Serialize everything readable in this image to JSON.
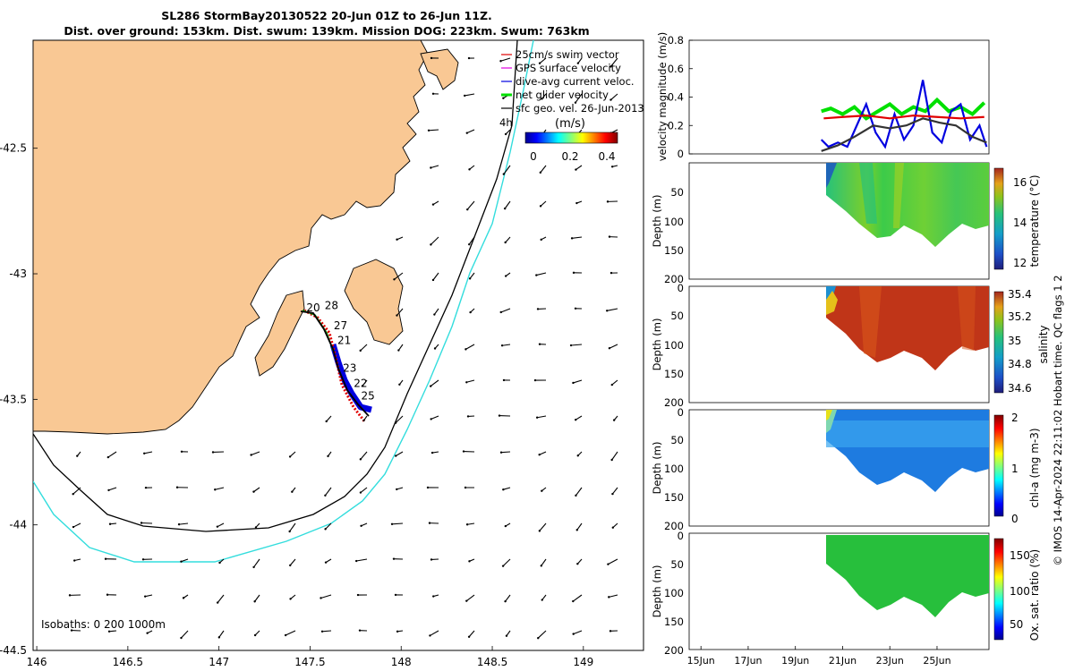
{
  "title_line1": "SL286 StormBay20130522 20-Jun 01Z to 26-Jun 11Z.",
  "title_line2": "Dist. over ground: 153km. Dist. swum: 139km. Mission DOG: 223km. Swum: 763km",
  "footer_credit": "© IMOS 14-Apr-2024 22:11:02 Hobart time. QC flags 1  2",
  "chart_data": [
    {
      "type": "map",
      "x_ticks": [
        "146",
        "146.5",
        "147",
        "147.5",
        "148",
        "148.5",
        "149"
      ],
      "y_ticks": [
        "-42.5",
        "-43",
        "-43.5",
        "-44",
        "-44.5"
      ],
      "xlim": [
        145.98,
        149.33
      ],
      "ylim": [
        -44.5,
        -42.07
      ],
      "legend": {
        "placement": "top-right",
        "entries": [
          {
            "label": "25cm/s swim vector",
            "color": "#e00000"
          },
          {
            "label": "GPS surface velocity",
            "color": "#e000e0"
          },
          {
            "label": "dive-avg current veloc.",
            "color": "#0000e0"
          },
          {
            "label": "net glider velocity",
            "color": "#00e000"
          },
          {
            "label": "sfc geo. vel. 26-Jun-2013",
            "color": "#000000"
          }
        ]
      },
      "legend_extra": "4h",
      "colorbar": {
        "label": "(m/s)",
        "ticks": [
          "0",
          "0.2",
          "0.4"
        ],
        "range": [
          0,
          0.5
        ]
      },
      "isobaths_label": "Isobaths: 0   200  1000m",
      "track_day_labels": [
        {
          "text": "20",
          "lon": 147.48,
          "lat": -43.15
        },
        {
          "text": "28",
          "lon": 147.58,
          "lat": -43.14
        },
        {
          "text": "27",
          "lon": 147.63,
          "lat": -43.22
        },
        {
          "text": "21",
          "lon": 147.65,
          "lat": -43.28
        },
        {
          "text": "23",
          "lon": 147.68,
          "lat": -43.39
        },
        {
          "text": "22",
          "lon": 147.74,
          "lat": -43.45
        },
        {
          "text": "25",
          "lon": 147.78,
          "lat": -43.5
        }
      ]
    },
    {
      "type": "line",
      "ylabel": "velocity magnitude (m/s)",
      "ylim": [
        0,
        0.8
      ],
      "y_ticks": [
        "0",
        "0.2",
        "0.4",
        "0.6",
        "0.8"
      ],
      "xlim_days": [
        14.5,
        27.2
      ],
      "series": [
        {
          "color": "#00e000",
          "x": [
            20.1,
            20.5,
            21.0,
            21.5,
            22.0,
            22.5,
            23.0,
            23.5,
            24.0,
            24.5,
            25.0,
            25.5,
            26.0,
            26.5,
            27.0
          ],
          "y": [
            0.3,
            0.32,
            0.28,
            0.33,
            0.25,
            0.3,
            0.35,
            0.28,
            0.33,
            0.3,
            0.38,
            0.3,
            0.33,
            0.28,
            0.36
          ]
        },
        {
          "color": "#0000e0",
          "x": [
            20.1,
            20.4,
            20.8,
            21.2,
            21.6,
            22.0,
            22.4,
            22.8,
            23.2,
            23.6,
            24.0,
            24.4,
            24.8,
            25.2,
            25.6,
            26.0,
            26.4,
            26.8,
            27.1
          ],
          "y": [
            0.1,
            0.05,
            0.08,
            0.05,
            0.2,
            0.35,
            0.15,
            0.05,
            0.28,
            0.1,
            0.2,
            0.52,
            0.15,
            0.08,
            0.3,
            0.35,
            0.1,
            0.2,
            0.05
          ]
        },
        {
          "color": "#e00000",
          "x": [
            20.2,
            21.0,
            22.0,
            23.0,
            24.0,
            25.0,
            26.0,
            27.0
          ],
          "y": [
            0.25,
            0.26,
            0.27,
            0.25,
            0.27,
            0.26,
            0.25,
            0.26
          ]
        },
        {
          "color": "#333333",
          "x": [
            20.1,
            20.8,
            21.5,
            22.3,
            23.0,
            23.7,
            24.4,
            25.1,
            25.8,
            26.5,
            27.1
          ],
          "y": [
            0.02,
            0.06,
            0.12,
            0.2,
            0.18,
            0.2,
            0.25,
            0.22,
            0.2,
            0.12,
            0.08
          ]
        }
      ]
    },
    {
      "type": "heatmap",
      "ylabel": "Depth (m)",
      "colorbar_label": "temperature (°C)",
      "colorbar_ticks": [
        "12",
        "14",
        "16"
      ],
      "colorbar_range": [
        11.3,
        16.8
      ],
      "y_ticks": [
        "50",
        "100",
        "150",
        "200"
      ],
      "values_note_range": [
        13.8,
        15.2
      ]
    },
    {
      "type": "heatmap",
      "ylabel": "Depth (m)",
      "colorbar_label": "salinity",
      "colorbar_ticks": [
        "34.6",
        "34.8",
        "35",
        "35.2",
        "35.4"
      ],
      "colorbar_range": [
        34.5,
        35.4
      ],
      "y_ticks": [
        "0",
        "50",
        "100",
        "150",
        "200"
      ]
    },
    {
      "type": "heatmap",
      "ylabel": "Depth (m)",
      "colorbar_label": "chl-a (mg m-3)",
      "colorbar_ticks": [
        "0",
        "1",
        "2"
      ],
      "colorbar_range": [
        0,
        2
      ],
      "y_ticks": [
        "0",
        "50",
        "100",
        "150",
        "200"
      ]
    },
    {
      "type": "heatmap",
      "ylabel": "Depth (m)",
      "colorbar_label": "Ox. sat. ratio (%)",
      "colorbar_ticks": [
        "50",
        "100",
        "150"
      ],
      "colorbar_range": [
        25,
        175
      ],
      "y_ticks": [
        "0",
        "50",
        "100",
        "150",
        "200"
      ],
      "x_ticks": [
        "15Jun",
        "17Jun",
        "19Jun",
        "21Jun",
        "23Jun",
        "25Jun"
      ]
    }
  ],
  "colors": {
    "land": "#f9c894",
    "isobath_200": "#000000",
    "isobath_1000": "#33dddd"
  }
}
